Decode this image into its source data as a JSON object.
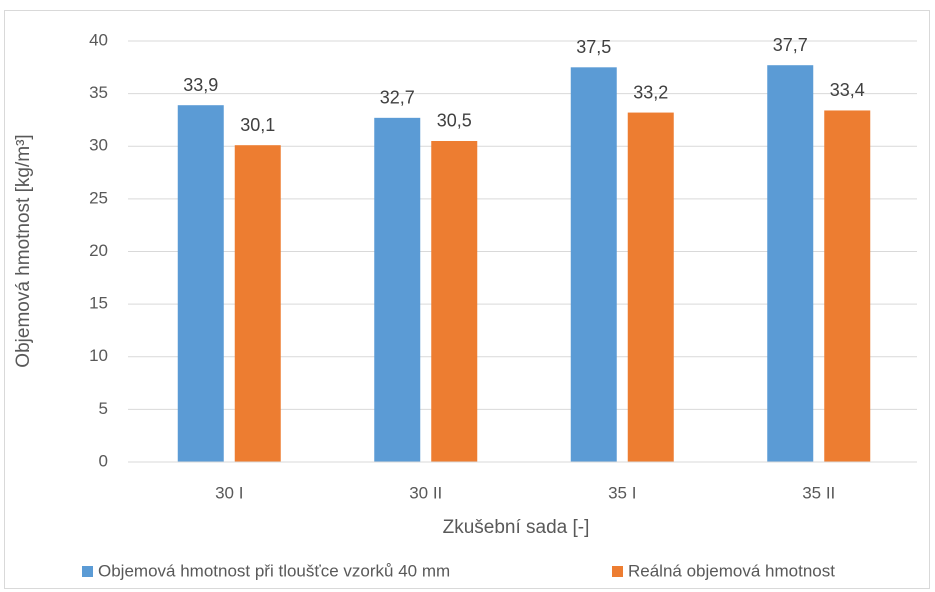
{
  "chart_data": {
    "type": "bar",
    "x_label": "Zkušební sada [-]",
    "y_label": "Objemová hmotnost [kg/m³]",
    "categories": [
      "30 I",
      "30 II",
      "35 I",
      "35 II"
    ],
    "series": [
      {
        "name": "Objemová hmotnost při tloušťce vzorků 40 mm",
        "color": "#5b9bd5",
        "values": [
          33.9,
          32.7,
          37.5,
          37.7
        ],
        "value_labels": [
          "33,9",
          "32,7",
          "37,5",
          "37,7"
        ]
      },
      {
        "name": "Reálná objemová hmotnost",
        "color": "#ed7d31",
        "values": [
          30.1,
          30.5,
          33.2,
          33.4
        ],
        "value_labels": [
          "30,1",
          "30,5",
          "33,2",
          "33,4"
        ]
      }
    ],
    "ylim": [
      0,
      40
    ],
    "yticks": [
      0,
      5,
      10,
      15,
      20,
      25,
      30,
      35,
      40
    ],
    "grid": true,
    "legend": "bottom"
  }
}
